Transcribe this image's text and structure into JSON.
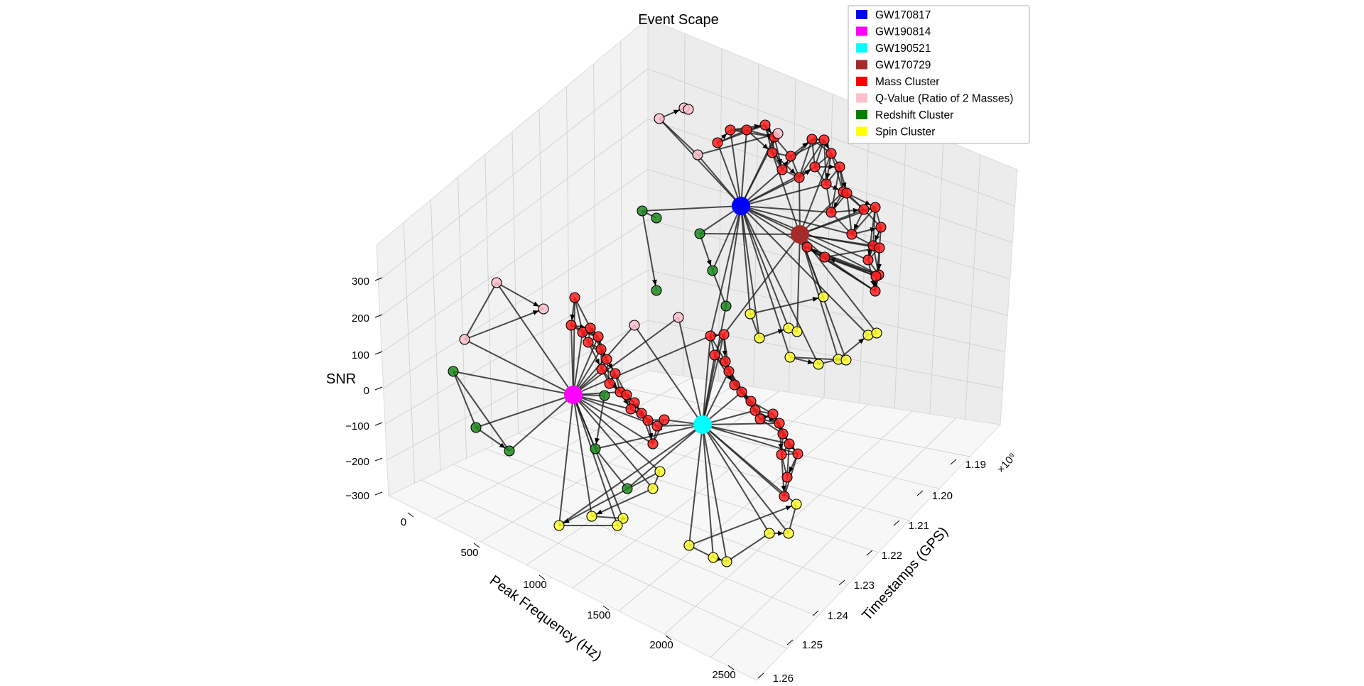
{
  "chart_data": {
    "type": "scatter",
    "projection": "3d",
    "title": "Event Scape",
    "xlabel": "Peak Frequency (Hz)",
    "ylabel": "Timestamps (GPS)",
    "zlabel": "SNR",
    "y_offset_text": "×10⁹",
    "x_ticks": [
      "0",
      "500",
      "1000",
      "1500",
      "2000",
      "2500"
    ],
    "y_ticks": [
      "1.19",
      "1.20",
      "1.21",
      "1.22",
      "1.23",
      "1.24",
      "1.25",
      "1.26"
    ],
    "z_ticks": [
      "300",
      "200",
      "100",
      "0",
      "−100",
      "−200",
      "−300"
    ],
    "legend_position": "top-right",
    "grid": true,
    "legend": [
      {
        "label": "GW170817",
        "color": "#0000ff"
      },
      {
        "label": "GW190814",
        "color": "#ff00ff"
      },
      {
        "label": "GW190521",
        "color": "#00ffff"
      },
      {
        "label": "GW170729",
        "color": "#a52a2a"
      },
      {
        "label": "Mass Cluster",
        "color": "#ff0000"
      },
      {
        "label": "Q-Value (Ratio of 2 Masses)",
        "color": "#ffc0cb"
      },
      {
        "label": "Redshift Cluster",
        "color": "#008000"
      },
      {
        "label": "Spin Cluster",
        "color": "#ffff00"
      }
    ]
  }
}
